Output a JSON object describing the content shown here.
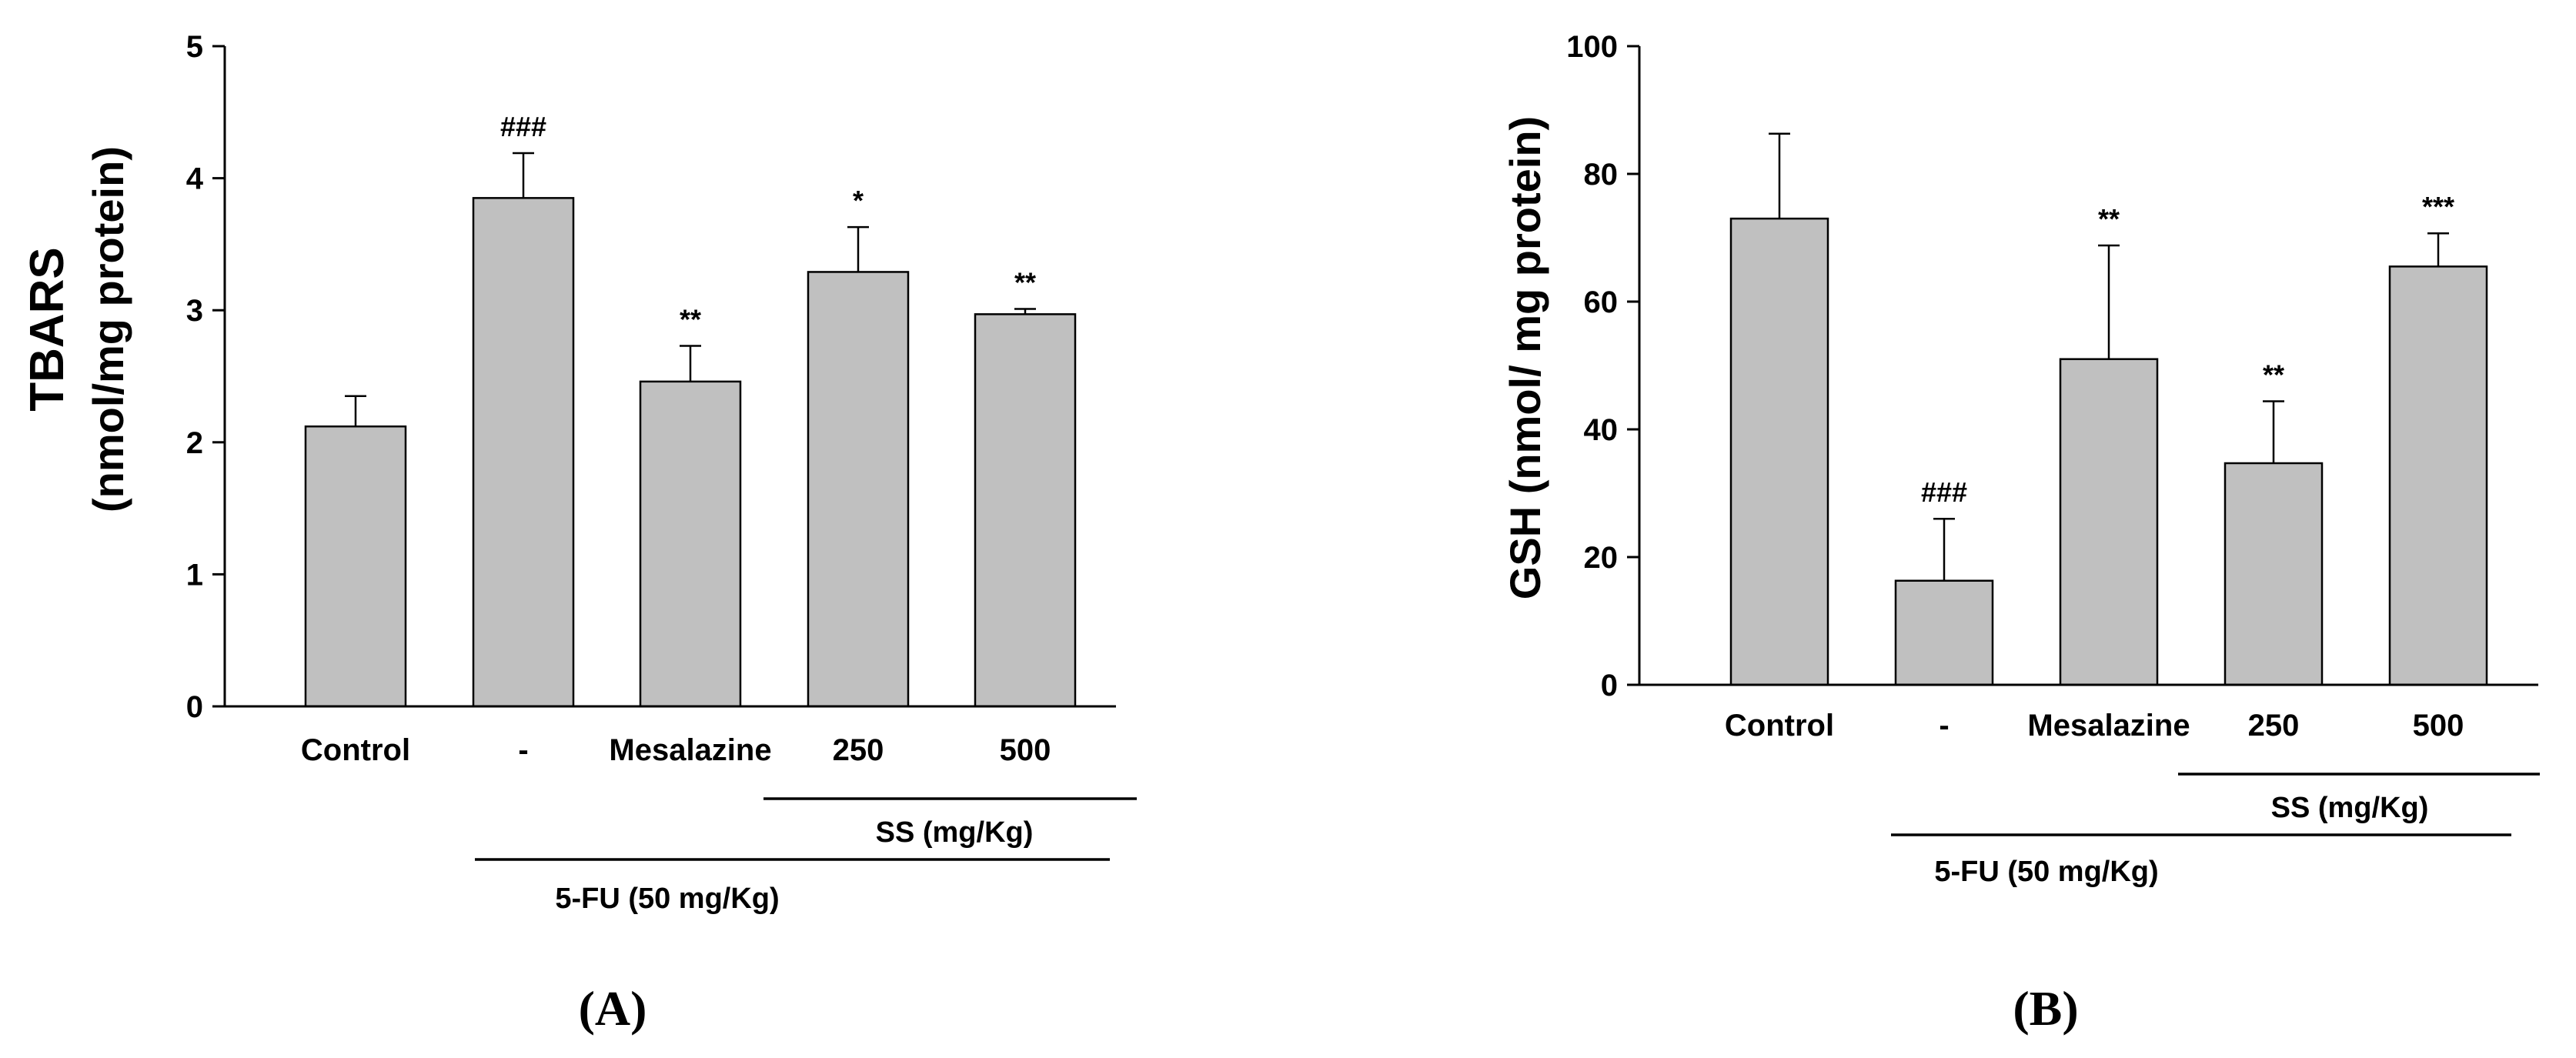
{
  "figure": {
    "panel_a_label": "(A)",
    "panel_b_label": "(B)"
  },
  "colors": {
    "bar_fill": "#c0c0c0",
    "bar_stroke": "#000000",
    "axis": "#000000",
    "background": "#ffffff"
  },
  "chart_data": [
    {
      "id": "A",
      "type": "bar",
      "title": "",
      "xlabel": "",
      "ylabel_line1": "TBARS",
      "ylabel_line2": "(nmol/mg protein)",
      "ylim": [
        0,
        5
      ],
      "yticks": [
        "0",
        "1",
        "2",
        "3",
        "4",
        "5"
      ],
      "categories": [
        "Control",
        "-",
        "Mesalazine",
        "250",
        "500"
      ],
      "values": [
        2.12,
        3.85,
        2.46,
        3.29,
        2.97
      ],
      "errors": [
        0.23,
        0.34,
        0.27,
        0.34,
        0.04
      ],
      "annotations": [
        "",
        "###",
        "**",
        "*",
        "**"
      ],
      "group_labels": {
        "ss": "SS (mg/Kg)",
        "fu": "5-FU (50 mg/Kg)"
      }
    },
    {
      "id": "B",
      "type": "bar",
      "title": "",
      "xlabel": "",
      "ylabel": "GSH (nmol/ mg protein)",
      "ylim": [
        0,
        100
      ],
      "yticks": [
        "0",
        "20",
        "40",
        "60",
        "80",
        "100"
      ],
      "categories": [
        "Control",
        "-",
        "Mesalazine",
        "250",
        "500"
      ],
      "values": [
        73,
        16.3,
        51,
        34.7,
        65.5
      ],
      "errors": [
        13.3,
        9.7,
        17.8,
        9.7,
        5.2
      ],
      "annotations": [
        "",
        "###",
        "**",
        "**",
        "***"
      ],
      "group_labels": {
        "ss": "SS (mg/Kg)",
        "fu": "5-FU (50 mg/Kg)"
      }
    }
  ]
}
